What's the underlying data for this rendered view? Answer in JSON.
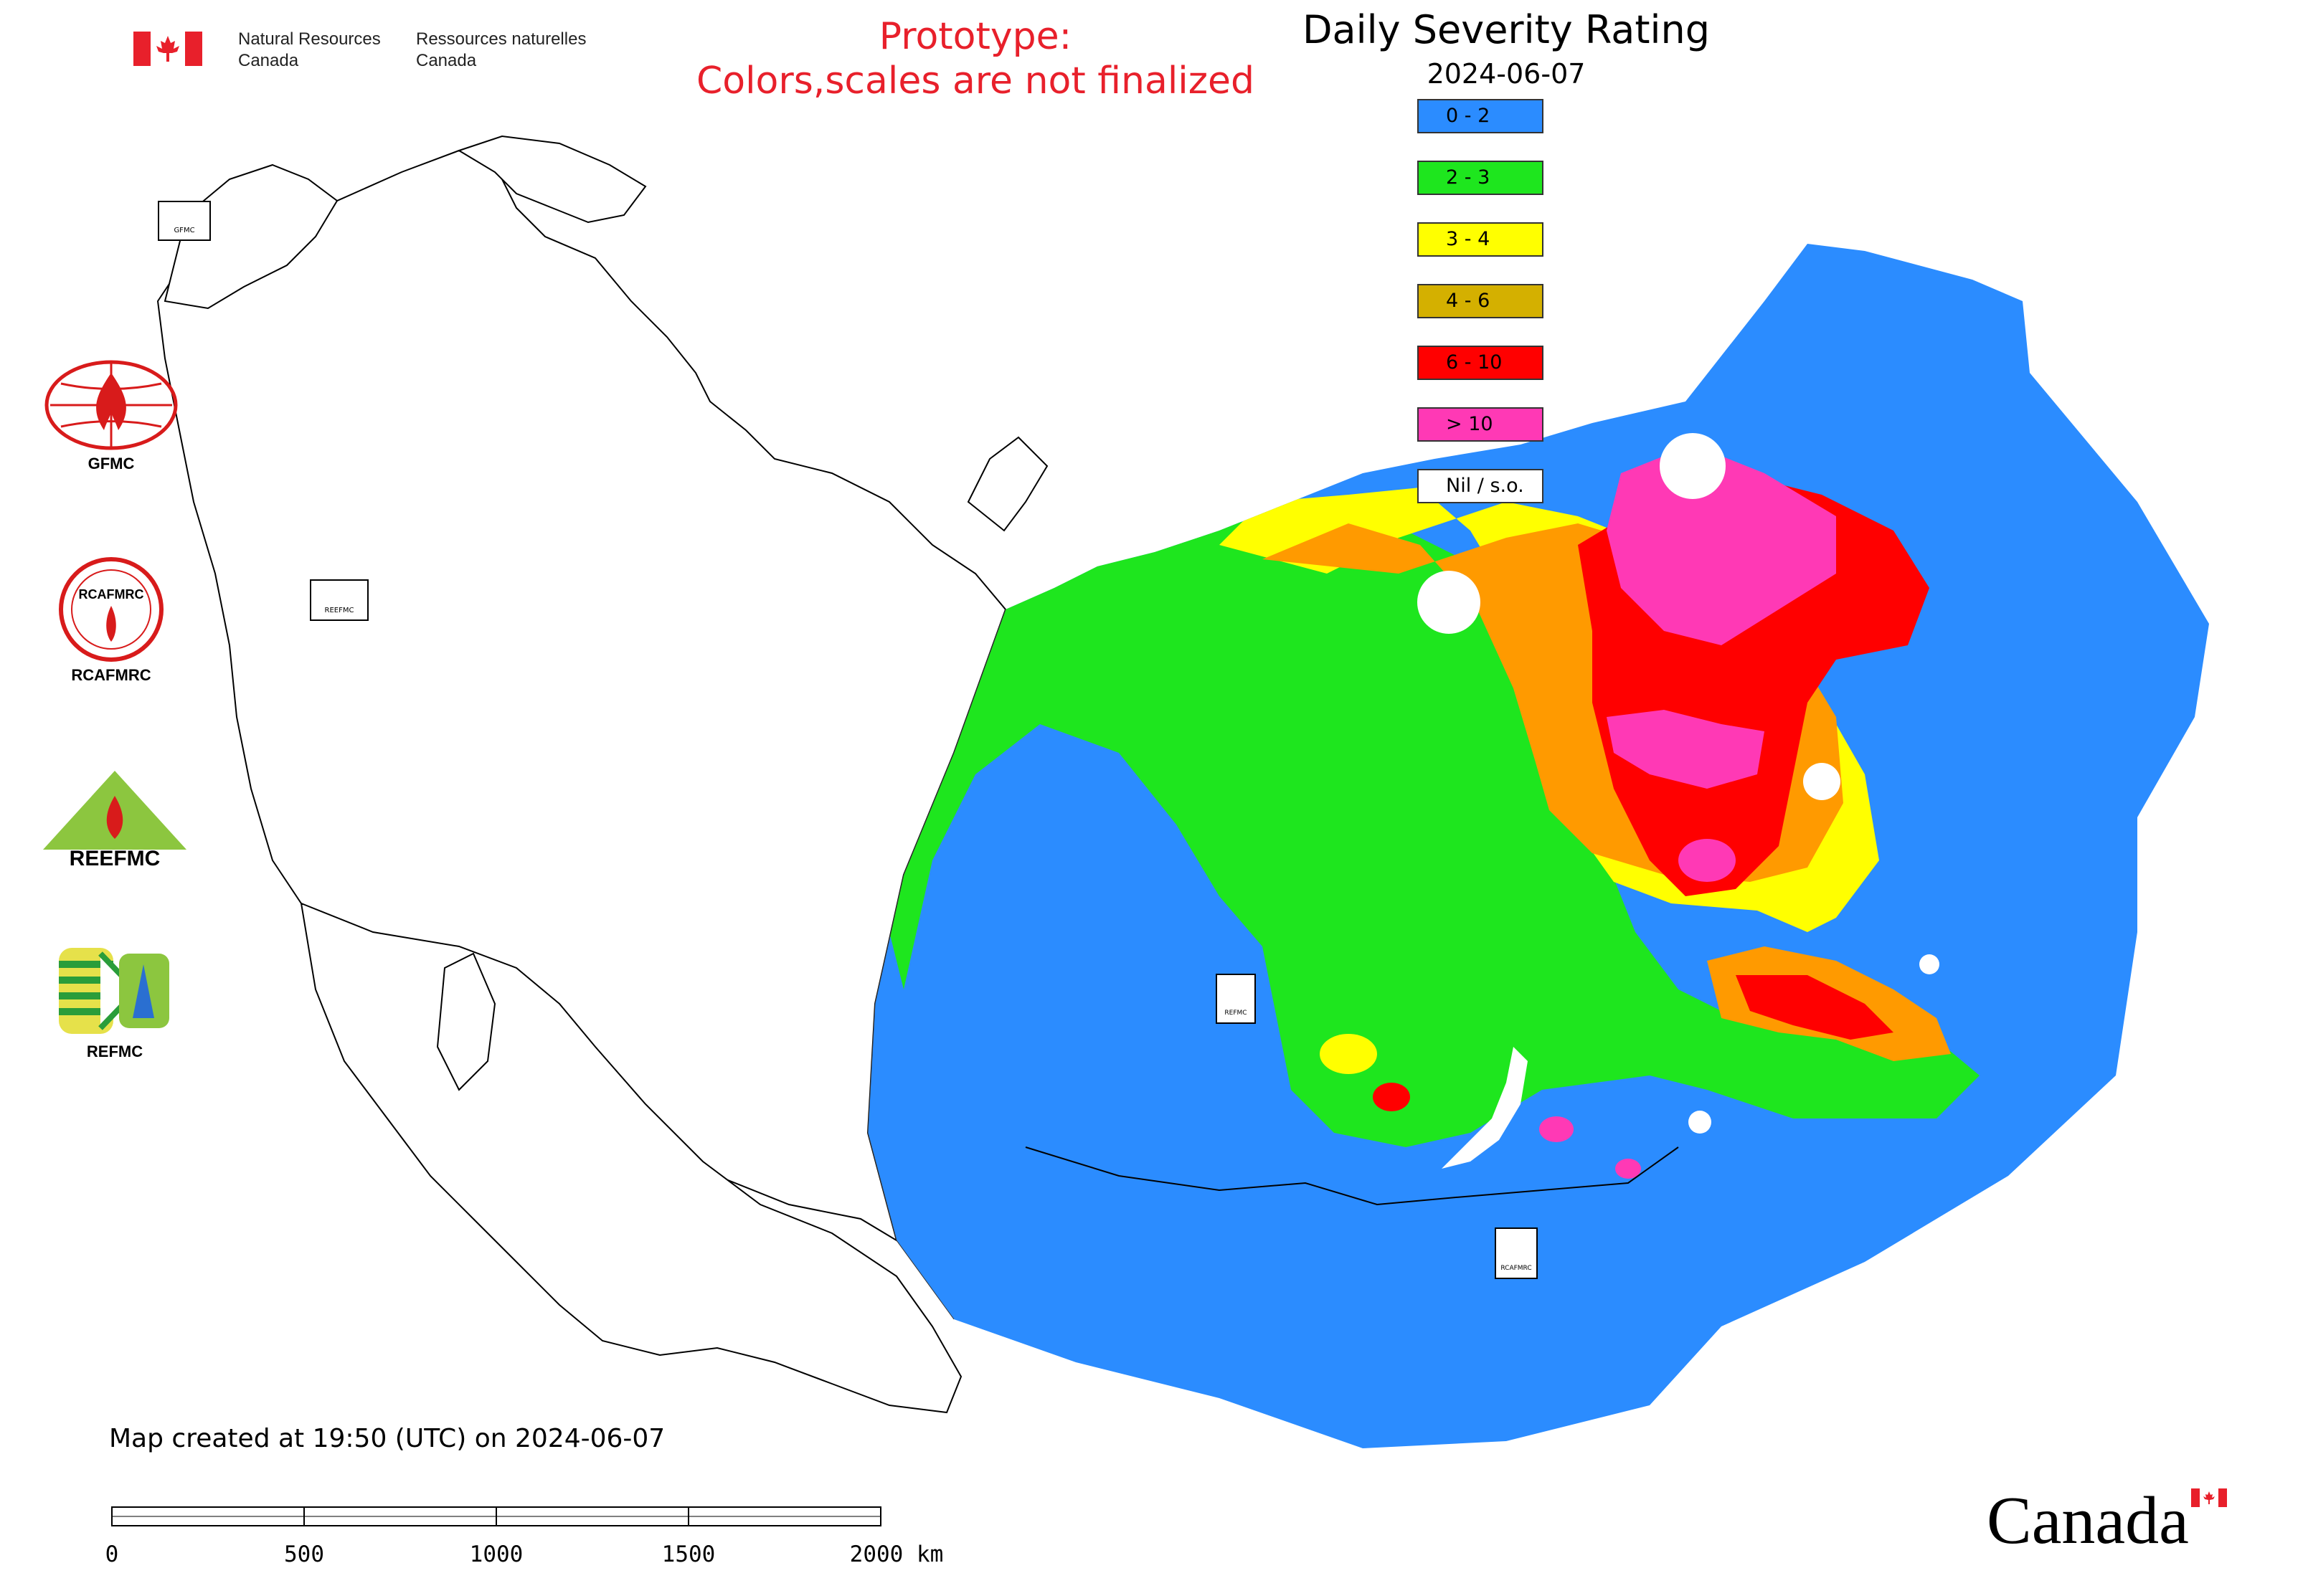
{
  "header": {
    "dept_en_line1": "Natural Resources",
    "dept_en_line2": "Canada",
    "dept_fr_line1": "Ressources naturelles",
    "dept_fr_line2": "Canada",
    "prototype_line1": "Prototype:",
    "prototype_line2": "Colors,scales are not finalized"
  },
  "legend": {
    "title": "Daily Severity Rating",
    "date": "2024-06-07",
    "classes": [
      {
        "label": "0 - 2",
        "color": "#2b8cff"
      },
      {
        "label": "2 - 3",
        "color": "#1ee61e"
      },
      {
        "label": "3 - 4",
        "color": "#ffff00"
      },
      {
        "label": "4 - 6",
        "color": "#d4b000"
      },
      {
        "label": "6 - 10",
        "color": "#ff0000"
      },
      {
        "label": "> 10",
        "color": "#ff39b5"
      },
      {
        "label": "Nil / s.o.",
        "color": "#ffffff"
      }
    ]
  },
  "map": {
    "background_color": "#ffffff",
    "border_color": "#000000",
    "region_markers": [
      "GFMC",
      "REEFMC",
      "REFMC",
      "RCAFMRC"
    ]
  },
  "logos": {
    "gfmc": "GFMC",
    "rcafmrc": "RCAFMRC",
    "reefmc": "REEFMC",
    "refmc": "REFMC",
    "rcafmrc_ring": "RCAFMRC"
  },
  "footer": {
    "created": "Map created at 19:50 (UTC) on 2024-06-07",
    "scale_ticks": [
      "0",
      "500",
      "1000",
      "1500",
      "2000 km"
    ],
    "wordmark": "Canada"
  }
}
